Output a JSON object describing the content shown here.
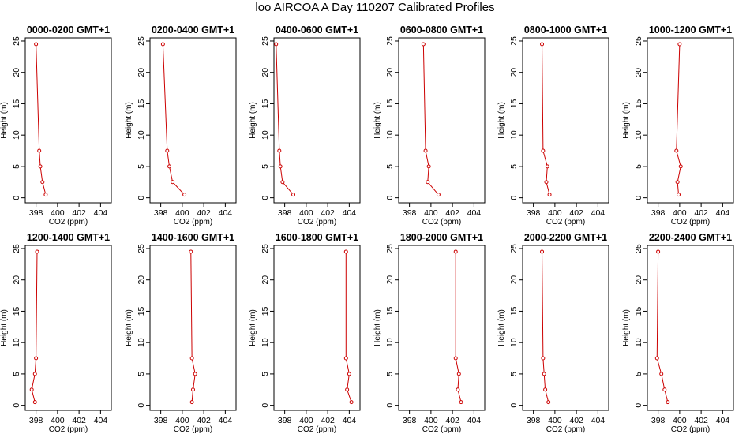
{
  "page": {
    "title": "loo AIRCOA A  Day 110207  Calibrated Profiles"
  },
  "colors": {
    "series": "#cc0000",
    "axis": "#000000"
  },
  "chart_data": [
    {
      "type": "line",
      "title": "0000-0200 GMT+1",
      "xlabel": "CO2 (ppm)",
      "ylabel": "Height (m)",
      "xlim": [
        397,
        405
      ],
      "ylim": [
        -0.8,
        25.5
      ],
      "xticks": [
        398,
        400,
        402,
        404
      ],
      "yticks": [
        0,
        5,
        10,
        15,
        20,
        25
      ],
      "series": [
        {
          "x": [
            398.9,
            398.6,
            398.4,
            398.3,
            398.0
          ],
          "y": [
            0.5,
            2.5,
            5,
            7.5,
            24.5
          ]
        }
      ]
    },
    {
      "type": "line",
      "title": "0200-0400 GMT+1",
      "xlabel": "CO2 (ppm)",
      "ylabel": "Height (m)",
      "xlim": [
        397,
        405
      ],
      "ylim": [
        -0.8,
        25.5
      ],
      "xticks": [
        398,
        400,
        402,
        404
      ],
      "yticks": [
        0,
        5,
        10,
        15,
        20,
        25
      ],
      "series": [
        {
          "x": [
            400.2,
            399.1,
            398.8,
            398.6,
            398.2
          ],
          "y": [
            0.5,
            2.5,
            5,
            7.5,
            24.5
          ]
        }
      ]
    },
    {
      "type": "line",
      "title": "0400-0600 GMT+1",
      "xlabel": "CO2 (ppm)",
      "ylabel": "Height (m)",
      "xlim": [
        397,
        405
      ],
      "ylim": [
        -0.8,
        25.5
      ],
      "xticks": [
        398,
        400,
        402,
        404
      ],
      "yticks": [
        0,
        5,
        10,
        15,
        20,
        25
      ],
      "series": [
        {
          "x": [
            398.8,
            397.8,
            397.6,
            397.5,
            397.2
          ],
          "y": [
            0.5,
            2.5,
            5,
            7.5,
            24.5
          ]
        }
      ]
    },
    {
      "type": "line",
      "title": "0600-0800 GMT+1",
      "xlabel": "CO2 (ppm)",
      "ylabel": "Height (m)",
      "xlim": [
        397,
        405
      ],
      "ylim": [
        -0.8,
        25.5
      ],
      "xticks": [
        398,
        400,
        402,
        404
      ],
      "yticks": [
        0,
        5,
        10,
        15,
        20,
        25
      ],
      "series": [
        {
          "x": [
            400.7,
            399.7,
            399.8,
            399.5,
            399.3
          ],
          "y": [
            0.5,
            2.5,
            5,
            7.5,
            24.5
          ]
        }
      ]
    },
    {
      "type": "line",
      "title": "0800-1000 GMT+1",
      "xlabel": "CO2 (ppm)",
      "ylabel": "Height (m)",
      "xlim": [
        397,
        405
      ],
      "ylim": [
        -0.8,
        25.5
      ],
      "xticks": [
        398,
        400,
        402,
        404
      ],
      "yticks": [
        0,
        5,
        10,
        15,
        20,
        25
      ],
      "series": [
        {
          "x": [
            399.5,
            399.2,
            399.3,
            398.9,
            398.8
          ],
          "y": [
            0.5,
            2.5,
            5,
            7.5,
            24.5
          ]
        }
      ]
    },
    {
      "type": "line",
      "title": "1000-1200 GMT+1",
      "xlabel": "CO2 (ppm)",
      "ylabel": "Height (m)",
      "xlim": [
        397,
        405
      ],
      "ylim": [
        -0.8,
        25.5
      ],
      "xticks": [
        398,
        400,
        402,
        404
      ],
      "yticks": [
        0,
        5,
        10,
        15,
        20,
        25
      ],
      "series": [
        {
          "x": [
            399.9,
            399.8,
            400.1,
            399.7,
            400.0
          ],
          "y": [
            0.5,
            2.5,
            5,
            7.5,
            24.5
          ]
        }
      ]
    },
    {
      "type": "line",
      "title": "1200-1400 GMT+1",
      "xlabel": "CO2 (ppm)",
      "ylabel": "Height (m)",
      "xlim": [
        397,
        405
      ],
      "ylim": [
        -0.8,
        25.5
      ],
      "xticks": [
        398,
        400,
        402,
        404
      ],
      "yticks": [
        0,
        5,
        10,
        15,
        20,
        25
      ],
      "series": [
        {
          "x": [
            397.9,
            397.6,
            397.9,
            398.0,
            398.1
          ],
          "y": [
            0.5,
            2.5,
            5,
            7.5,
            24.5
          ]
        }
      ]
    },
    {
      "type": "line",
      "title": "1400-1600 GMT+1",
      "xlabel": "CO2 (ppm)",
      "ylabel": "Height (m)",
      "xlim": [
        397,
        405
      ],
      "ylim": [
        -0.8,
        25.5
      ],
      "xticks": [
        398,
        400,
        402,
        404
      ],
      "yticks": [
        0,
        5,
        10,
        15,
        20,
        25
      ],
      "series": [
        {
          "x": [
            400.9,
            401.0,
            401.2,
            400.9,
            400.8
          ],
          "y": [
            0.5,
            2.5,
            5,
            7.5,
            24.5
          ]
        }
      ]
    },
    {
      "type": "line",
      "title": "1600-1800 GMT+1",
      "xlabel": "CO2 (ppm)",
      "ylabel": "Height (m)",
      "xlim": [
        397,
        405
      ],
      "ylim": [
        -0.8,
        25.5
      ],
      "xticks": [
        398,
        400,
        402,
        404
      ],
      "yticks": [
        0,
        5,
        10,
        15,
        20,
        25
      ],
      "series": [
        {
          "x": [
            404.2,
            403.8,
            404.0,
            403.7,
            403.7
          ],
          "y": [
            0.5,
            2.5,
            5,
            7.5,
            24.5
          ]
        }
      ]
    },
    {
      "type": "line",
      "title": "1800-2000 GMT+1",
      "xlabel": "CO2 (ppm)",
      "ylabel": "Height (m)",
      "xlim": [
        397,
        405
      ],
      "ylim": [
        -0.8,
        25.5
      ],
      "xticks": [
        398,
        400,
        402,
        404
      ],
      "yticks": [
        0,
        5,
        10,
        15,
        20,
        25
      ],
      "series": [
        {
          "x": [
            402.8,
            402.5,
            402.6,
            402.3,
            402.3
          ],
          "y": [
            0.5,
            2.5,
            5,
            7.5,
            24.5
          ]
        }
      ]
    },
    {
      "type": "line",
      "title": "2000-2200 GMT+1",
      "xlabel": "CO2 (ppm)",
      "ylabel": "Height (m)",
      "xlim": [
        397,
        405
      ],
      "ylim": [
        -0.8,
        25.5
      ],
      "xticks": [
        398,
        400,
        402,
        404
      ],
      "yticks": [
        0,
        5,
        10,
        15,
        20,
        25
      ],
      "series": [
        {
          "x": [
            399.4,
            399.1,
            399.0,
            398.9,
            398.8
          ],
          "y": [
            0.5,
            2.5,
            5,
            7.5,
            24.5
          ]
        }
      ]
    },
    {
      "type": "line",
      "title": "2200-2400 GMT+1",
      "xlabel": "CO2 (ppm)",
      "ylabel": "Height (m)",
      "xlim": [
        397,
        405
      ],
      "ylim": [
        -0.8,
        25.5
      ],
      "xticks": [
        398,
        400,
        402,
        404
      ],
      "yticks": [
        0,
        5,
        10,
        15,
        20,
        25
      ],
      "series": [
        {
          "x": [
            398.9,
            398.6,
            398.3,
            397.9,
            398.0
          ],
          "y": [
            0.5,
            2.5,
            5,
            7.5,
            24.5
          ]
        }
      ]
    }
  ]
}
